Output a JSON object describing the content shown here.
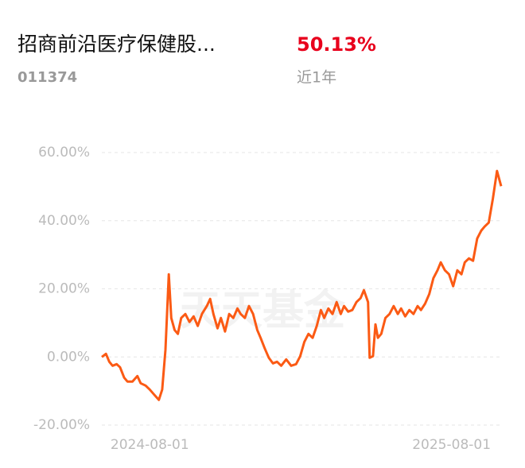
{
  "header": {
    "title": "招商前沿医疗保健股...",
    "code": "011374",
    "return": "50.13%",
    "period": "近1年"
  },
  "chart_data": {
    "type": "line",
    "watermark": "天天基金",
    "x": [
      "2024-06-04",
      "2024-06-09",
      "2024-06-13",
      "2024-06-17",
      "2024-06-22",
      "2024-06-26",
      "2024-07-01",
      "2024-07-05",
      "2024-07-11",
      "2024-07-17",
      "2024-07-21",
      "2024-07-27",
      "2024-08-01",
      "2024-08-06",
      "2024-08-12",
      "2024-08-16",
      "2024-08-20",
      "2024-08-24",
      "2024-08-27",
      "2024-08-31",
      "2024-09-04",
      "2024-09-08",
      "2024-09-13",
      "2024-09-18",
      "2024-09-23",
      "2024-09-28",
      "2024-10-03",
      "2024-10-09",
      "2024-10-13",
      "2024-10-17",
      "2024-10-22",
      "2024-10-26",
      "2024-10-31",
      "2024-11-05",
      "2024-11-10",
      "2024-11-15",
      "2024-11-19",
      "2024-11-24",
      "2024-11-29",
      "2024-12-04",
      "2024-12-09",
      "2024-12-13",
      "2024-12-18",
      "2024-12-23",
      "2024-12-28",
      "2025-01-02",
      "2025-01-07",
      "2025-01-13",
      "2025-01-19",
      "2025-01-25",
      "2025-01-30",
      "2025-02-04",
      "2025-02-09",
      "2025-02-14",
      "2025-02-19",
      "2025-02-24",
      "2025-02-28",
      "2025-03-05",
      "2025-03-10",
      "2025-03-15",
      "2025-03-20",
      "2025-03-24",
      "2025-03-29",
      "2025-04-03",
      "2025-04-08",
      "2025-04-13",
      "2025-04-17",
      "2025-04-22",
      "2025-04-24",
      "2025-04-28",
      "2025-05-01",
      "2025-05-04",
      "2025-05-08",
      "2025-05-13",
      "2025-05-18",
      "2025-05-23",
      "2025-05-28",
      "2025-06-01",
      "2025-06-06",
      "2025-06-11",
      "2025-06-16",
      "2025-06-21",
      "2025-06-25",
      "2025-06-30",
      "2025-07-05",
      "2025-07-10",
      "2025-07-15",
      "2025-07-19",
      "2025-07-24",
      "2025-07-29",
      "2025-08-03",
      "2025-08-08",
      "2025-08-13",
      "2025-08-17",
      "2025-08-22",
      "2025-08-27",
      "2025-09-01",
      "2025-09-06",
      "2025-09-10",
      "2025-09-15",
      "2025-09-20",
      "2025-09-25",
      "2025-09-30"
    ],
    "series": [
      {
        "color": "#fb5a14",
        "values": [
          0,
          0.93,
          -1.4,
          -2.57,
          -2.1,
          -3.03,
          -6.07,
          -7.23,
          -7.23,
          -5.6,
          -7.7,
          -8.4,
          -9.57,
          -10.97,
          -12.6,
          -9.57,
          2.1,
          24.27,
          11.44,
          7.93,
          6.77,
          11.44,
          12.6,
          10.27,
          11.9,
          9.1,
          12.6,
          14.94,
          17.04,
          12.6,
          8.4,
          11.44,
          7.47,
          12.6,
          11.44,
          14.24,
          12.6,
          11.44,
          14.94,
          12.6,
          7.93,
          5.6,
          2.57,
          -0.23,
          -1.87,
          -1.4,
          -2.57,
          -0.7,
          -2.57,
          -2.1,
          0.23,
          4.43,
          6.77,
          5.6,
          9.1,
          13.77,
          11.44,
          14.24,
          12.6,
          16.1,
          12.6,
          14.94,
          13.3,
          13.77,
          16.1,
          17.27,
          19.6,
          16.1,
          -0.23,
          0.23,
          9.57,
          5.6,
          6.77,
          11.44,
          12.6,
          14.94,
          12.6,
          14.24,
          11.9,
          13.77,
          12.6,
          14.94,
          13.77,
          15.64,
          18.44,
          23.1,
          25.44,
          27.77,
          25.44,
          24.27,
          20.77,
          25.44,
          24.27,
          27.77,
          28.94,
          28.24,
          34.77,
          37.11,
          38.27,
          39.44,
          46.44,
          54.61,
          50.13
        ]
      }
    ],
    "xlim": [
      "2024-06-04",
      "2025-09-30"
    ],
    "xticks": [
      "2024-08-01",
      "2025-08-01"
    ],
    "ylim": [
      -20,
      60
    ],
    "yticks": [
      {
        "value": -20,
        "label": "-20.00%"
      },
      {
        "value": 0,
        "label": "0.00%"
      },
      {
        "value": 20,
        "label": "20.00%"
      },
      {
        "value": 40,
        "label": "40.00%"
      },
      {
        "value": 60,
        "label": "60.00%"
      }
    ],
    "grid": true
  }
}
